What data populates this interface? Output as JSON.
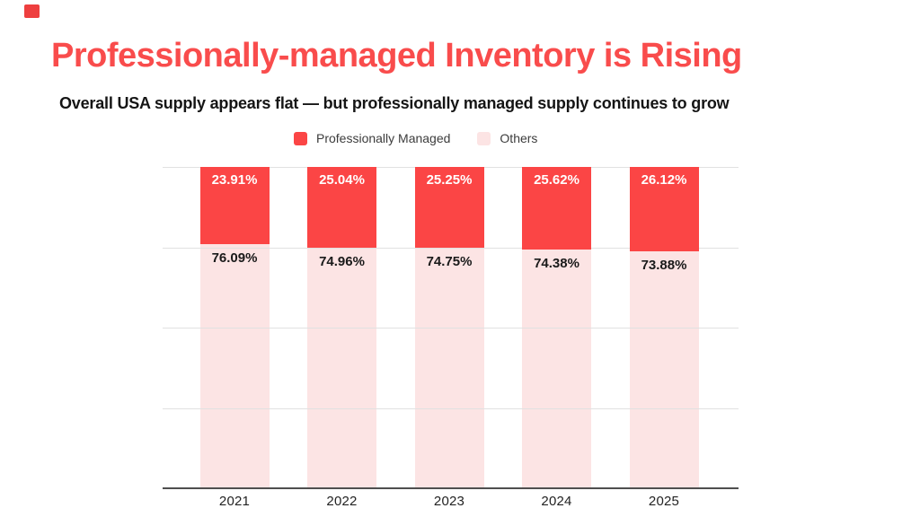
{
  "page": {
    "background": "#ffffff"
  },
  "brand_mark": {
    "color": "#ee3f3f"
  },
  "header": {
    "title": "Professionally-managed Inventory is Rising",
    "title_color": "#f94c4c",
    "subtitle": "Overall USA supply appears flat — but professionally managed supply continues to grow"
  },
  "legend": {
    "items": [
      {
        "label": "Professionally Managed",
        "color": "#fb4545"
      },
      {
        "label": "Others",
        "color": "#fce4e4"
      }
    ]
  },
  "chart_data": {
    "type": "bar",
    "stacked": true,
    "percent_stack": true,
    "title": "",
    "xlabel": "",
    "ylabel": "",
    "ylim": [
      0,
      100
    ],
    "grid": "horizontal gridlines at 0%, 25%, 50%, 75%, 100% (unlabeled)",
    "legend_position": "top-center",
    "categories": [
      "2021",
      "2022",
      "2023",
      "2024",
      "2025"
    ],
    "series": [
      {
        "name": "Professionally Managed",
        "color": "#fb4545",
        "position": "top segment",
        "values": [
          23.91,
          25.04,
          25.25,
          25.62,
          26.12
        ],
        "labels": [
          "23.91%",
          "25.04%",
          "25.25%",
          "25.62%",
          "26.12%"
        ],
        "label_color": "#ffffff"
      },
      {
        "name": "Others",
        "color": "#fce4e4",
        "position": "bottom segment",
        "values": [
          76.09,
          74.96,
          74.75,
          74.38,
          73.88
        ],
        "labels": [
          "76.09%",
          "74.96%",
          "74.75%",
          "74.38%",
          "73.88%"
        ],
        "label_color": "#1a1a1a"
      }
    ]
  }
}
